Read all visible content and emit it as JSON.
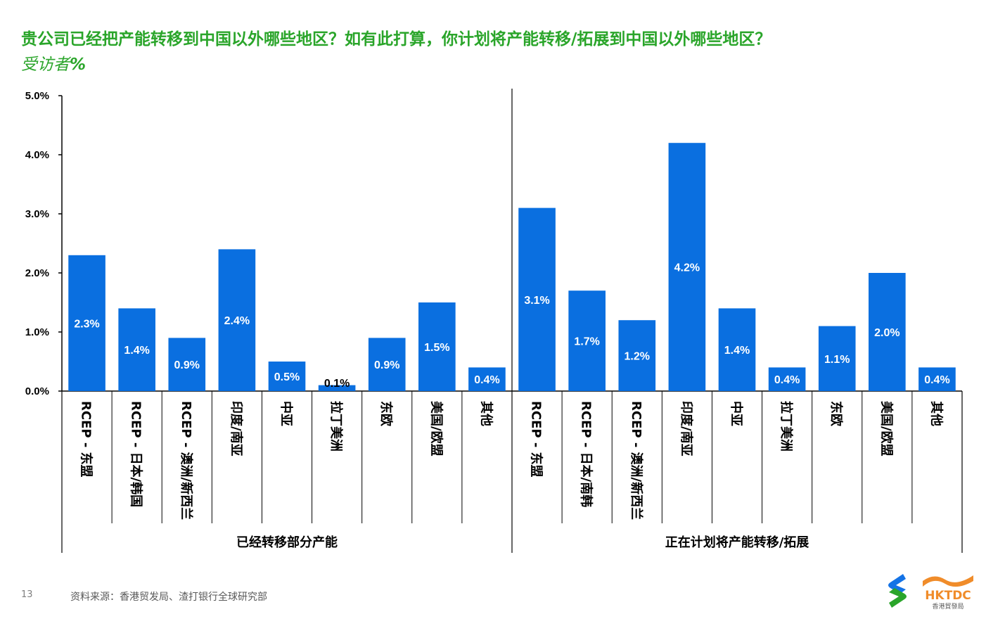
{
  "title": "贵公司已经把产能转移到中国以外哪些地区？如有此打算，你计划将产能转移/拓展到中国以外哪些地区？",
  "subtitle": "受访者",
  "subtitle_unit": "%",
  "footer": {
    "page_number": "13",
    "source": "资料来源：香港贸发局、渣打银行全球研究部"
  },
  "logos": {
    "hktdc_text": "HKTDC",
    "hktdc_sub": "香港貿發局"
  },
  "colors": {
    "title": "#2aa52a",
    "bar": "#0a6fe0",
    "bar_label": "#ffffff",
    "dark_label": "#000000",
    "sc_green": "#2aa52a",
    "sc_blue": "#1473e6",
    "hktdc_orange": "#f08c2a"
  },
  "chart_data": {
    "type": "bar",
    "ylim": [
      0,
      5
    ],
    "yticks": [
      0,
      1,
      2,
      3,
      4,
      5
    ],
    "ytick_labels": [
      "0.0%",
      "1.0%",
      "2.0%",
      "3.0%",
      "4.0%",
      "5.0%"
    ],
    "grid": false,
    "categories": [
      "RCEP - 东盟",
      "RCEP - 日本/韩国",
      "RCEP - 澳洲/新西兰",
      "印度/南亚",
      "中亚",
      "拉丁美洲",
      "东欧",
      "美国/欧盟",
      "其他",
      "RCEP - 东盟",
      "RCEP - 日本/南韩",
      "RCEP - 澳洲/新西兰",
      "印度/南亚",
      "中亚",
      "拉丁美洲",
      "东欧",
      "美国/欧盟",
      "其他"
    ],
    "values": [
      2.3,
      1.4,
      0.9,
      2.4,
      0.5,
      0.1,
      0.9,
      1.5,
      0.4,
      3.1,
      1.7,
      1.2,
      4.2,
      1.4,
      0.4,
      1.1,
      2.0,
      0.4
    ],
    "data_labels": [
      "2.3%",
      "1.4%",
      "0.9%",
      "2.4%",
      "0.5%",
      "0.1%",
      "0.9%",
      "1.5%",
      "0.4%",
      "3.1%",
      "1.7%",
      "1.2%",
      "4.2%",
      "1.4%",
      "0.4%",
      "1.1%",
      "2.0%",
      "0.4%"
    ],
    "groups": [
      {
        "label": "已经转移部分产能",
        "count": 9
      },
      {
        "label": "正在计划将产能转移/拓展",
        "count": 9
      }
    ]
  }
}
